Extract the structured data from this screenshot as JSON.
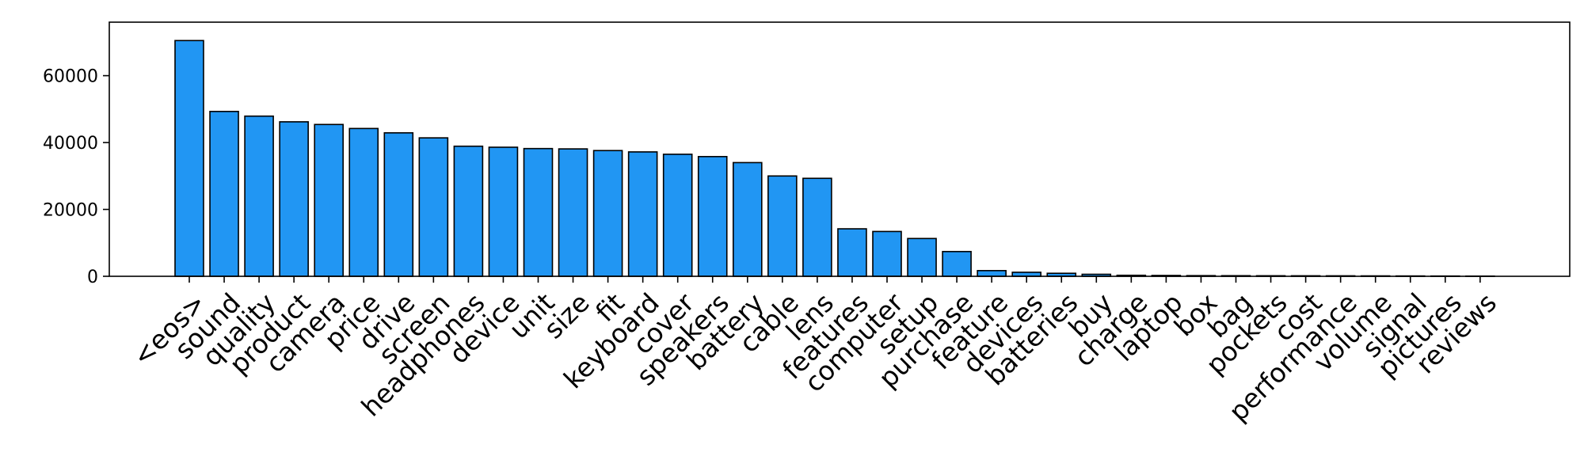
{
  "chart_data": {
    "type": "bar",
    "title": "",
    "xlabel": "",
    "ylabel": "",
    "ylim": [
      0,
      76000
    ],
    "yticks": [
      0,
      20000,
      40000,
      60000
    ],
    "bar_color": "#2196f3",
    "edge_color": "#000000",
    "grid": false,
    "legend": "none",
    "categories": [
      "<eos>",
      "sound",
      "quality",
      "product",
      "camera",
      "price",
      "drive",
      "screen",
      "headphones",
      "device",
      "unit",
      "size",
      "fit",
      "keyboard",
      "cover",
      "speakers",
      "battery",
      "cable",
      "lens",
      "features",
      "computer",
      "setup",
      "purchase",
      "feature",
      "devices",
      "batteries",
      "buy",
      "charge",
      "laptop",
      "box",
      "bag",
      "pockets",
      "cost",
      "performance",
      "volume",
      "signal",
      "pictures",
      "reviews"
    ],
    "values": [
      70500,
      49300,
      47900,
      46200,
      45400,
      44200,
      42900,
      41400,
      38900,
      38600,
      38200,
      38100,
      37600,
      37200,
      36500,
      35800,
      34000,
      30000,
      29300,
      14200,
      13400,
      11300,
      7400,
      1700,
      1200,
      900,
      600,
      300,
      250,
      200,
      180,
      160,
      150,
      140,
      120,
      100,
      80,
      60
    ]
  }
}
